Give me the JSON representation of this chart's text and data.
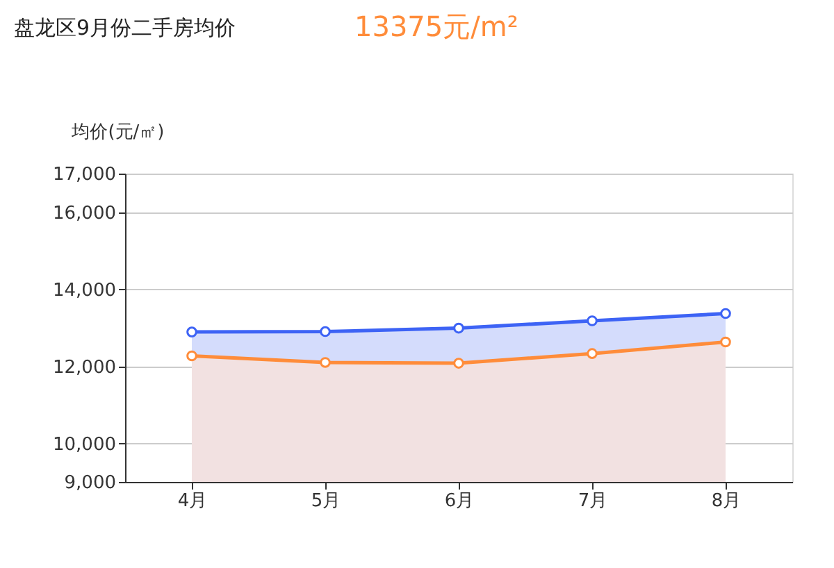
{
  "chart_data": {
    "type": "area",
    "title": "盘龙区9月份二手房均价",
    "annotations": [
      "13375元/m²"
    ],
    "ylabel": "均价(元/㎡)",
    "categories": [
      "4月",
      "5月",
      "6月",
      "7月",
      "8月"
    ],
    "series": [
      {
        "color": "#3d63f5",
        "values": [
          12890,
          12900,
          12990,
          13180,
          13370
        ]
      },
      {
        "color": "#ff8c3a",
        "values": [
          12270,
          12100,
          12080,
          12330,
          12630
        ]
      }
    ],
    "ylim": [
      9000,
      17000
    ],
    "yticks": [
      {
        "value": 9000,
        "label": "9,000"
      },
      {
        "value": 10000,
        "label": "10,000"
      },
      {
        "value": 12000,
        "label": "12,000"
      },
      {
        "value": 14000,
        "label": "14,000"
      },
      {
        "value": 16000,
        "label": "16,000"
      },
      {
        "value": 17000,
        "label": "17,000"
      }
    ],
    "grid": "y",
    "marker": "circle"
  }
}
